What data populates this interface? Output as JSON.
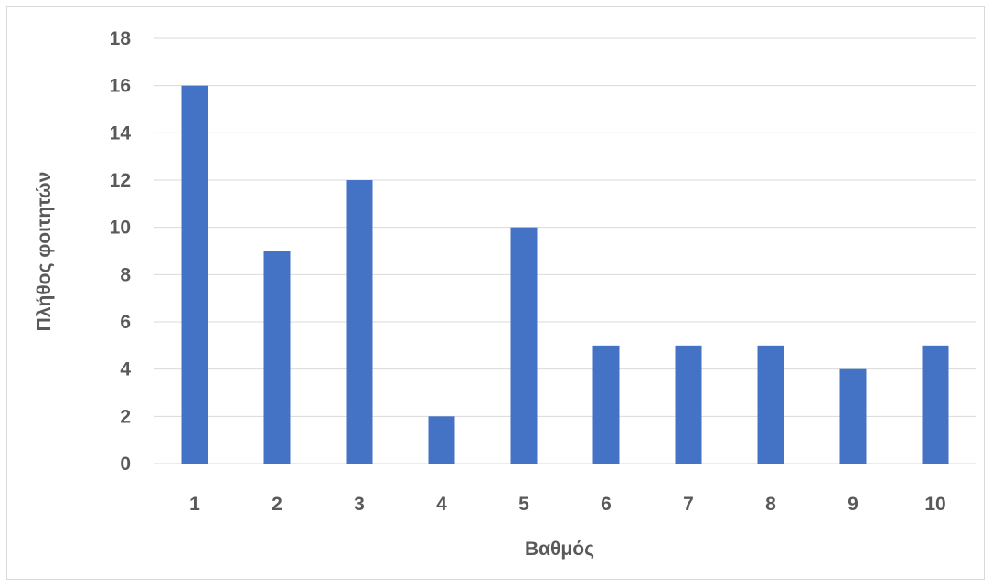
{
  "chart_data": {
    "type": "bar",
    "title": "",
    "xlabel": "Βαθμός",
    "ylabel": "Πλήθος φοιτητών",
    "categories": [
      "1",
      "2",
      "3",
      "4",
      "5",
      "6",
      "7",
      "8",
      "9",
      "10"
    ],
    "series": [
      {
        "values": [
          16,
          9,
          12,
          2,
          10,
          5,
          5,
          5,
          4,
          5
        ]
      }
    ],
    "ylim": [
      0,
      18
    ],
    "yticks": [
      "0",
      "2",
      "4",
      "6",
      "8",
      "10",
      "12",
      "14",
      "16",
      "18"
    ],
    "grid": true,
    "legend": "none",
    "colors": {
      "bar": "#4472C4",
      "grid": "#d9d9d9",
      "text": "#595959"
    }
  }
}
